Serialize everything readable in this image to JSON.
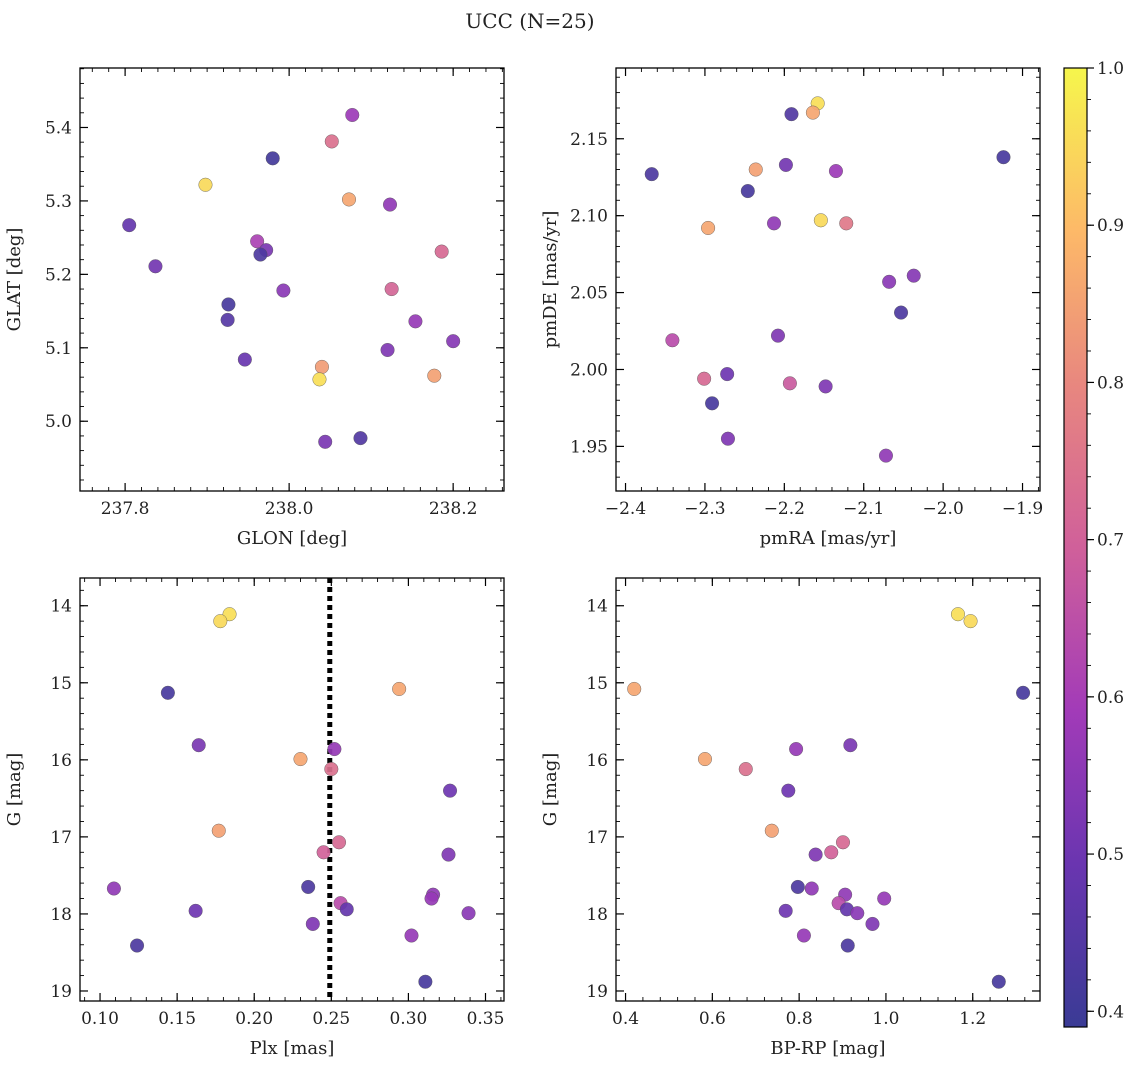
{
  "chart_data": {
    "title": "UCC (N=25)",
    "colorbar": {
      "colormap": "plasma",
      "range": [
        0.39,
        1.0
      ],
      "ticks": [
        0.4,
        0.5,
        0.6,
        0.7,
        0.8,
        0.9,
        1.0
      ],
      "tick_labels": [
        "0.4",
        "0.5",
        "0.6",
        "0.7",
        "0.8",
        "0.9",
        "1.0"
      ]
    },
    "panels": [
      {
        "id": "glon-glat",
        "type": "scatter",
        "xlabel": "GLON [deg]",
        "ylabel": "GLAT [deg]",
        "xlim": [
          237.745,
          238.262
        ],
        "ylim": [
          4.905,
          5.481
        ],
        "xticks": [
          237.8,
          238.0,
          238.2
        ],
        "xtick_labels": [
          "237.8",
          "238.0",
          "238.2"
        ],
        "xminor": 0.02,
        "yticks": [
          5.0,
          5.1,
          5.2,
          5.3,
          5.4
        ],
        "ytick_labels": [
          "5.0",
          "5.1",
          "5.2",
          "5.3",
          "5.4"
        ],
        "yminor": 0.02,
        "points": [
          {
            "x": 238.077,
            "y": 5.417,
            "c": 0.58
          },
          {
            "x": 238.052,
            "y": 5.381,
            "c": 0.74
          },
          {
            "x": 237.98,
            "y": 5.358,
            "c": 0.41
          },
          {
            "x": 237.898,
            "y": 5.322,
            "c": 0.95
          },
          {
            "x": 238.073,
            "y": 5.302,
            "c": 0.86
          },
          {
            "x": 238.123,
            "y": 5.295,
            "c": 0.56
          },
          {
            "x": 237.805,
            "y": 5.267,
            "c": 0.48
          },
          {
            "x": 237.961,
            "y": 5.245,
            "c": 0.61
          },
          {
            "x": 237.972,
            "y": 5.233,
            "c": 0.52
          },
          {
            "x": 237.965,
            "y": 5.227,
            "c": 0.43
          },
          {
            "x": 238.186,
            "y": 5.231,
            "c": 0.72
          },
          {
            "x": 237.837,
            "y": 5.211,
            "c": 0.51
          },
          {
            "x": 237.993,
            "y": 5.178,
            "c": 0.55
          },
          {
            "x": 238.125,
            "y": 5.18,
            "c": 0.71
          },
          {
            "x": 237.926,
            "y": 5.159,
            "c": 0.42
          },
          {
            "x": 237.925,
            "y": 5.138,
            "c": 0.45
          },
          {
            "x": 238.154,
            "y": 5.136,
            "c": 0.57
          },
          {
            "x": 238.12,
            "y": 5.097,
            "c": 0.53
          },
          {
            "x": 238.2,
            "y": 5.109,
            "c": 0.54
          },
          {
            "x": 237.946,
            "y": 5.084,
            "c": 0.49
          },
          {
            "x": 238.04,
            "y": 5.074,
            "c": 0.84
          },
          {
            "x": 238.037,
            "y": 5.057,
            "c": 0.96
          },
          {
            "x": 238.177,
            "y": 5.062,
            "c": 0.85
          },
          {
            "x": 238.044,
            "y": 4.972,
            "c": 0.52
          },
          {
            "x": 238.087,
            "y": 4.977,
            "c": 0.44
          }
        ]
      },
      {
        "id": "pmra-pmde",
        "type": "scatter",
        "xlabel": "pmRA [mas/yr]",
        "ylabel": "pmDE [mas/yr]",
        "xlim": [
          -2.412,
          -1.878
        ],
        "ylim": [
          1.921,
          2.196
        ],
        "xticks": [
          -2.4,
          -2.3,
          -2.2,
          -2.1,
          -2.0,
          -1.9
        ],
        "xtick_labels": [
          "−2.4",
          "−2.3",
          "−2.2",
          "−2.1",
          "−2.0",
          "−1.9"
        ],
        "xminor": 0.02,
        "yticks": [
          1.95,
          2.0,
          2.05,
          2.1,
          2.15
        ],
        "ytick_labels": [
          "1.95",
          "2.00",
          "2.05",
          "2.10",
          "2.15"
        ],
        "yminor": 0.01,
        "points": [
          {
            "x": -2.158,
            "y": 2.173,
            "c": 0.96
          },
          {
            "x": -2.164,
            "y": 2.167,
            "c": 0.86
          },
          {
            "x": -2.191,
            "y": 2.166,
            "c": 0.44
          },
          {
            "x": -1.924,
            "y": 2.138,
            "c": 0.42
          },
          {
            "x": -2.198,
            "y": 2.133,
            "c": 0.51
          },
          {
            "x": -2.236,
            "y": 2.13,
            "c": 0.85
          },
          {
            "x": -2.367,
            "y": 2.127,
            "c": 0.43
          },
          {
            "x": -2.135,
            "y": 2.129,
            "c": 0.58
          },
          {
            "x": -2.246,
            "y": 2.116,
            "c": 0.42
          },
          {
            "x": -2.154,
            "y": 2.097,
            "c": 0.95
          },
          {
            "x": -2.213,
            "y": 2.095,
            "c": 0.56
          },
          {
            "x": -2.122,
            "y": 2.095,
            "c": 0.76
          },
          {
            "x": -2.296,
            "y": 2.092,
            "c": 0.86
          },
          {
            "x": -2.068,
            "y": 2.057,
            "c": 0.55
          },
          {
            "x": -2.037,
            "y": 2.061,
            "c": 0.54
          },
          {
            "x": -2.053,
            "y": 2.037,
            "c": 0.43
          },
          {
            "x": -2.208,
            "y": 2.022,
            "c": 0.53
          },
          {
            "x": -2.341,
            "y": 2.019,
            "c": 0.64
          },
          {
            "x": -2.272,
            "y": 1.997,
            "c": 0.5
          },
          {
            "x": -2.301,
            "y": 1.994,
            "c": 0.72
          },
          {
            "x": -2.193,
            "y": 1.991,
            "c": 0.68
          },
          {
            "x": -2.148,
            "y": 1.989,
            "c": 0.53
          },
          {
            "x": -2.291,
            "y": 1.978,
            "c": 0.42
          },
          {
            "x": -2.271,
            "y": 1.955,
            "c": 0.53
          },
          {
            "x": -2.072,
            "y": 1.944,
            "c": 0.56
          }
        ]
      },
      {
        "id": "plx-g",
        "type": "scatter",
        "xlabel": "Plx [mas]",
        "ylabel": "G [mag]",
        "xlim": [
          0.087,
          0.362
        ],
        "ylim": [
          19.13,
          13.64
        ],
        "y_inverted": true,
        "xticks": [
          0.1,
          0.15,
          0.2,
          0.25,
          0.3,
          0.35
        ],
        "xtick_labels": [
          "0.10",
          "0.15",
          "0.20",
          "0.25",
          "0.30",
          "0.35"
        ],
        "xminor": 0.01,
        "yticks": [
          14,
          15,
          16,
          17,
          18,
          19
        ],
        "ytick_labels": [
          "14",
          "15",
          "16",
          "17",
          "18",
          "19"
        ],
        "yminor": 0.2,
        "vline": {
          "x": 0.249,
          "style": "dotted"
        },
        "points": [
          {
            "x": 0.184,
            "y": 14.11,
            "c": 0.96
          },
          {
            "x": 0.178,
            "y": 14.2,
            "c": 0.95
          },
          {
            "x": 0.144,
            "y": 15.13,
            "c": 0.42
          },
          {
            "x": 0.294,
            "y": 15.08,
            "c": 0.86
          },
          {
            "x": 0.164,
            "y": 15.81,
            "c": 0.52
          },
          {
            "x": 0.252,
            "y": 15.86,
            "c": 0.57
          },
          {
            "x": 0.23,
            "y": 15.99,
            "c": 0.86
          },
          {
            "x": 0.25,
            "y": 16.12,
            "c": 0.74
          },
          {
            "x": 0.327,
            "y": 16.4,
            "c": 0.5
          },
          {
            "x": 0.177,
            "y": 16.92,
            "c": 0.85
          },
          {
            "x": 0.255,
            "y": 17.07,
            "c": 0.72
          },
          {
            "x": 0.245,
            "y": 17.2,
            "c": 0.7
          },
          {
            "x": 0.326,
            "y": 17.23,
            "c": 0.53
          },
          {
            "x": 0.235,
            "y": 17.65,
            "c": 0.43
          },
          {
            "x": 0.109,
            "y": 17.67,
            "c": 0.56
          },
          {
            "x": 0.316,
            "y": 17.75,
            "c": 0.56
          },
          {
            "x": 0.315,
            "y": 17.8,
            "c": 0.57
          },
          {
            "x": 0.256,
            "y": 17.86,
            "c": 0.64
          },
          {
            "x": 0.26,
            "y": 17.94,
            "c": 0.48
          },
          {
            "x": 0.162,
            "y": 17.96,
            "c": 0.5
          },
          {
            "x": 0.339,
            "y": 17.99,
            "c": 0.55
          },
          {
            "x": 0.238,
            "y": 18.13,
            "c": 0.53
          },
          {
            "x": 0.302,
            "y": 18.28,
            "c": 0.57
          },
          {
            "x": 0.124,
            "y": 18.41,
            "c": 0.43
          },
          {
            "x": 0.311,
            "y": 18.88,
            "c": 0.42
          }
        ]
      },
      {
        "id": "bprp-g",
        "type": "scatter",
        "xlabel": "BP-RP [mag]",
        "ylabel": "G [mag]",
        "xlim": [
          0.378,
          1.355
        ],
        "ylim": [
          19.13,
          13.64
        ],
        "y_inverted": true,
        "xticks": [
          0.4,
          0.6,
          0.8,
          1.0,
          1.2
        ],
        "xtick_labels": [
          "0.4",
          "0.6",
          "0.8",
          "1.0",
          "1.2"
        ],
        "xminor": 0.04,
        "yticks": [
          14,
          15,
          16,
          17,
          18,
          19
        ],
        "ytick_labels": [
          "14",
          "15",
          "16",
          "17",
          "18",
          "19"
        ],
        "yminor": 0.2,
        "points": [
          {
            "x": 1.166,
            "y": 14.11,
            "c": 0.96
          },
          {
            "x": 1.195,
            "y": 14.2,
            "c": 0.95
          },
          {
            "x": 1.316,
            "y": 15.13,
            "c": 0.42
          },
          {
            "x": 0.42,
            "y": 15.08,
            "c": 0.86
          },
          {
            "x": 0.918,
            "y": 15.81,
            "c": 0.52
          },
          {
            "x": 0.793,
            "y": 15.86,
            "c": 0.57
          },
          {
            "x": 0.583,
            "y": 15.99,
            "c": 0.86
          },
          {
            "x": 0.677,
            "y": 16.12,
            "c": 0.74
          },
          {
            "x": 0.775,
            "y": 16.4,
            "c": 0.5
          },
          {
            "x": 0.737,
            "y": 16.92,
            "c": 0.85
          },
          {
            "x": 0.901,
            "y": 17.07,
            "c": 0.72
          },
          {
            "x": 0.874,
            "y": 17.2,
            "c": 0.7
          },
          {
            "x": 0.838,
            "y": 17.23,
            "c": 0.53
          },
          {
            "x": 0.797,
            "y": 17.65,
            "c": 0.43
          },
          {
            "x": 0.829,
            "y": 17.67,
            "c": 0.56
          },
          {
            "x": 0.906,
            "y": 17.75,
            "c": 0.56
          },
          {
            "x": 0.996,
            "y": 17.8,
            "c": 0.57
          },
          {
            "x": 0.891,
            "y": 17.86,
            "c": 0.64
          },
          {
            "x": 0.91,
            "y": 17.94,
            "c": 0.48
          },
          {
            "x": 0.769,
            "y": 17.96,
            "c": 0.5
          },
          {
            "x": 0.934,
            "y": 17.99,
            "c": 0.55
          },
          {
            "x": 0.969,
            "y": 18.13,
            "c": 0.53
          },
          {
            "x": 0.811,
            "y": 18.28,
            "c": 0.57
          },
          {
            "x": 0.912,
            "y": 18.41,
            "c": 0.43
          },
          {
            "x": 1.26,
            "y": 18.88,
            "c": 0.42
          }
        ]
      }
    ]
  }
}
